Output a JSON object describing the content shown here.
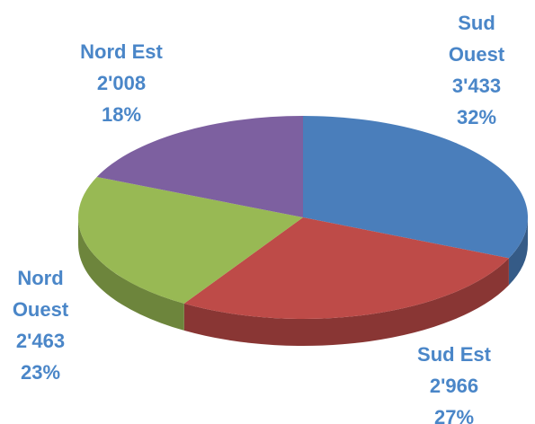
{
  "chart_data": {
    "type": "pie",
    "categories": [
      "Sud Ouest",
      "Sud Est",
      "Nord Ouest",
      "Nord Est"
    ],
    "values": [
      3433,
      2966,
      2463,
      2008
    ],
    "value_labels": [
      "3'433",
      "2'966",
      "2'463",
      "2'008"
    ],
    "percentages": [
      32,
      27,
      23,
      18
    ],
    "percentage_labels": [
      "32%",
      "27%",
      "23%",
      "18%"
    ],
    "colors": [
      "#4a7ebb",
      "#be4b48",
      "#98b954",
      "#7d60a0"
    ],
    "start_angle": 0,
    "direction": "clockwise"
  }
}
